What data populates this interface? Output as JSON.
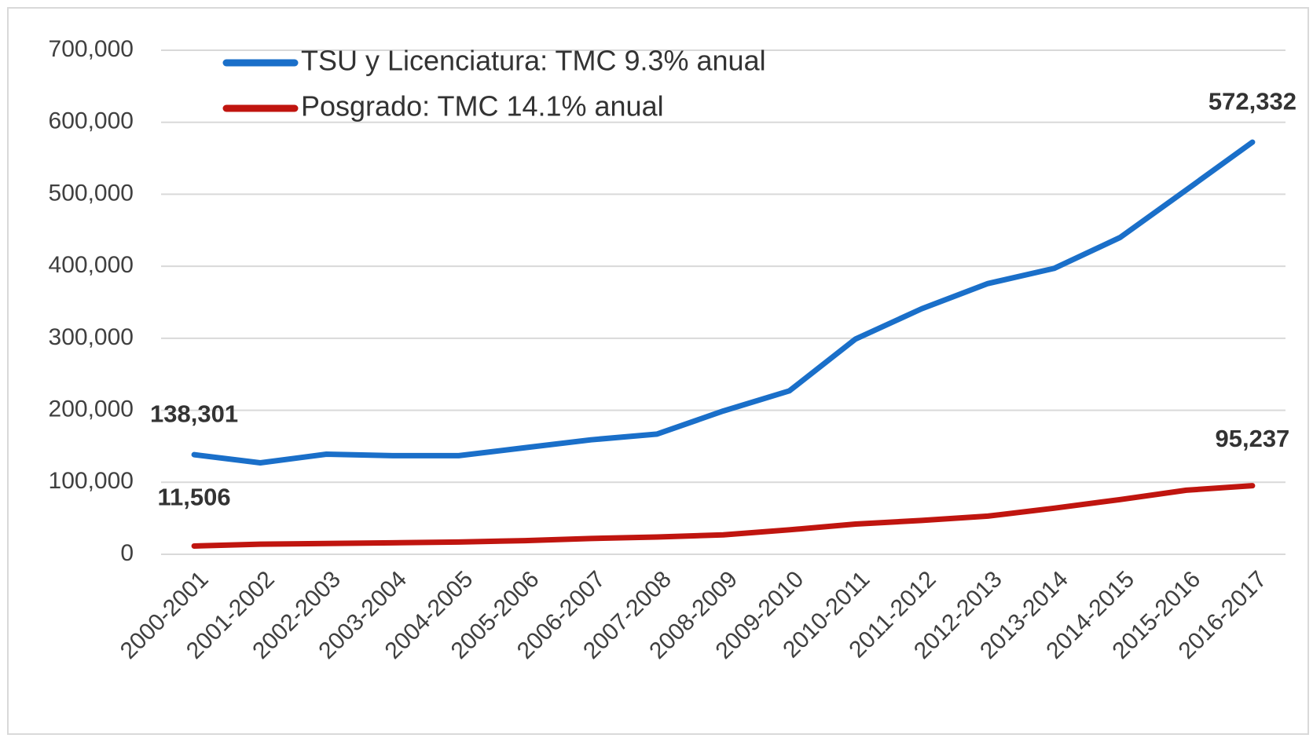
{
  "chart_data": {
    "type": "line",
    "categories": [
      "2000-2001",
      "2001-2002",
      "2002-2003",
      "2003-2004",
      "2004-2005",
      "2005-2006",
      "2006-2007",
      "2007-2008",
      "2008-2009",
      "2009-2010",
      "2010-2011",
      "2011-2012",
      "2012-2013",
      "2013-2014",
      "2014-2015",
      "2015-2016",
      "2016-2017"
    ],
    "series": [
      {
        "name": "TSU y Licenciatura: TMC 9.3% anual",
        "color": "#1a6fc9",
        "values": [
          138301,
          127000,
          139000,
          137000,
          137000,
          148000,
          159000,
          167000,
          199000,
          227000,
          299000,
          341000,
          376000,
          397000,
          440000,
          506000,
          572332
        ],
        "value_labels": [
          "138,301",
          null,
          null,
          null,
          null,
          null,
          null,
          null,
          null,
          null,
          null,
          null,
          null,
          null,
          null,
          null,
          "572,332"
        ]
      },
      {
        "name": "Posgrado: TMC 14.1% anual",
        "color": "#c0150f",
        "values": [
          11506,
          14000,
          15000,
          16000,
          17000,
          19000,
          22000,
          24000,
          27000,
          34000,
          42000,
          47000,
          53000,
          64000,
          76000,
          89000,
          95237
        ],
        "value_labels": [
          "11,506",
          null,
          null,
          null,
          null,
          null,
          null,
          null,
          null,
          null,
          null,
          null,
          null,
          null,
          null,
          null,
          "95,237"
        ]
      }
    ],
    "ylim": [
      0,
      700000
    ],
    "yticks": [
      0,
      {
        "value": 100000,
        "label": "100,000"
      },
      {
        "value": 200000,
        "label": "200,000"
      },
      {
        "value": 300000,
        "label": "300,000"
      },
      {
        "value": 400000,
        "label": "400,000"
      },
      {
        "value": 500000,
        "label": "500,000"
      },
      {
        "value": 600000,
        "label": "600,000"
      },
      {
        "value": 700000,
        "label": "700,000"
      }
    ],
    "grid": true,
    "legend": "top-left"
  }
}
